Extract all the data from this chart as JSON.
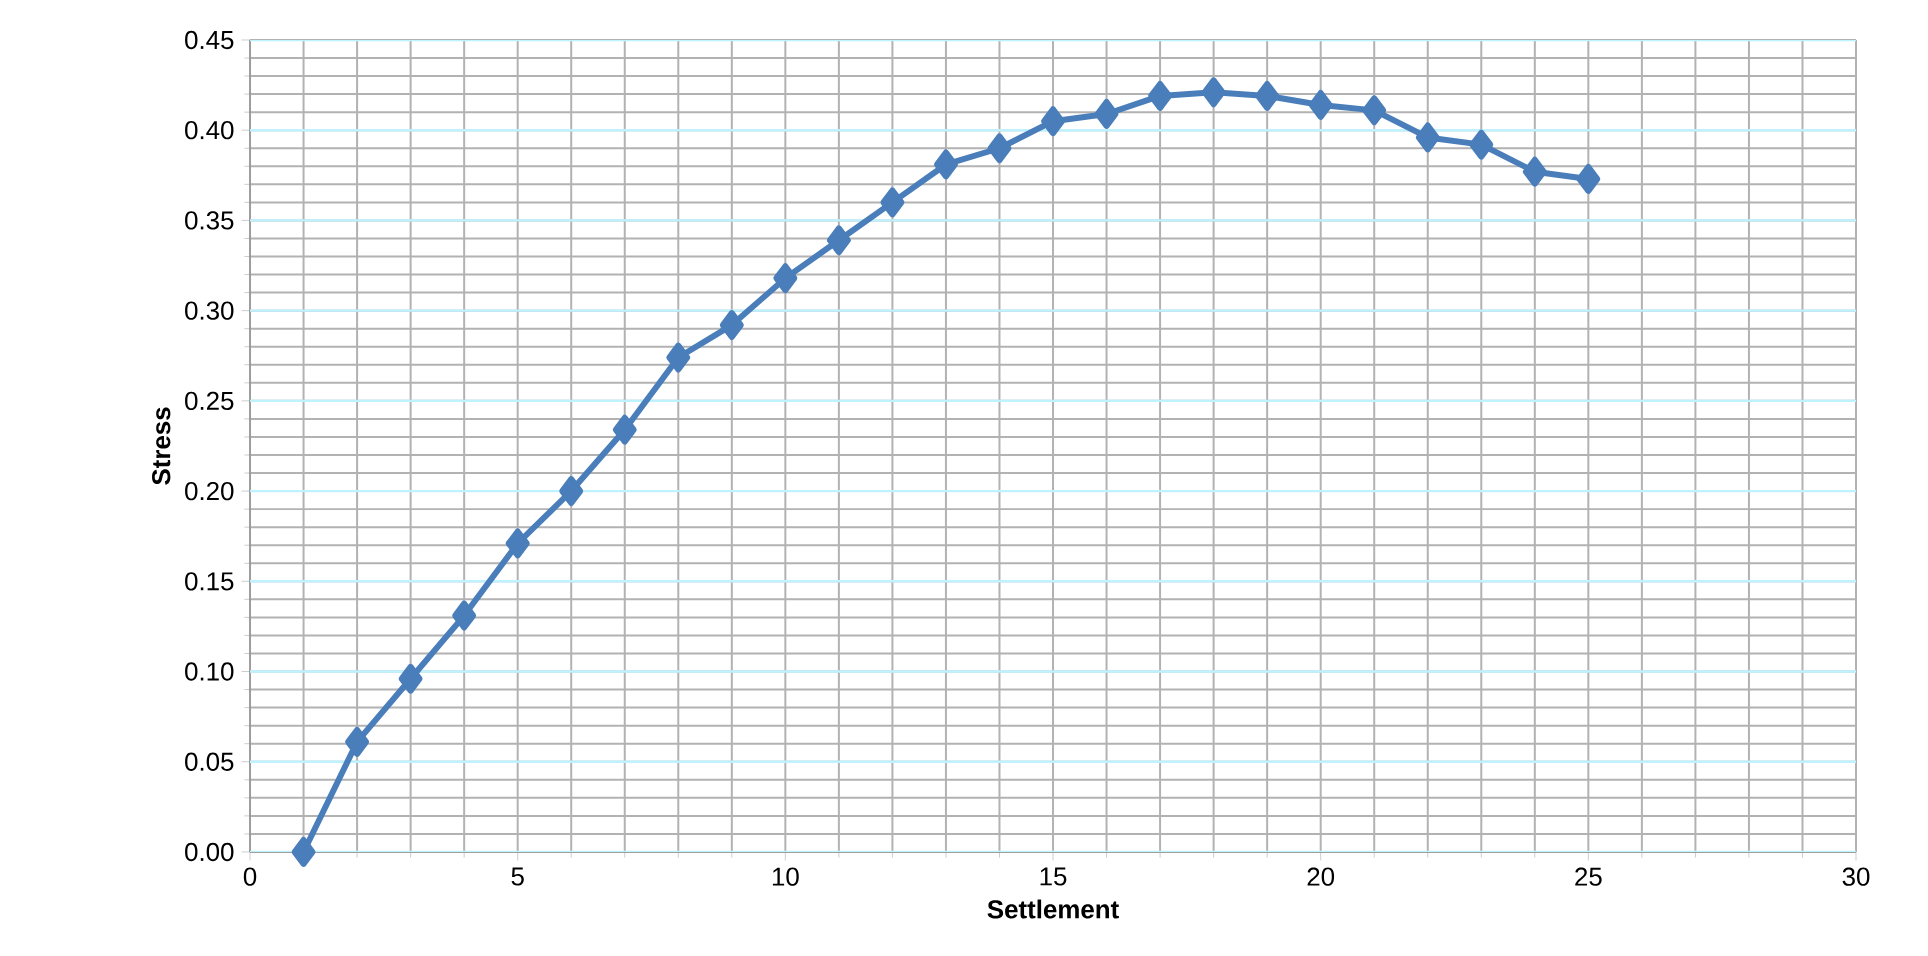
{
  "chart_data": {
    "type": "line",
    "xlabel": "Settlement",
    "ylabel": "Stress",
    "x": [
      1,
      2,
      3,
      4,
      5,
      6,
      7,
      8,
      9,
      10,
      11,
      12,
      13,
      14,
      15,
      16,
      17,
      18,
      19,
      20,
      21,
      22,
      23,
      24,
      25
    ],
    "series": [
      {
        "color": "#4a7ebb",
        "values": [
          0.0,
          0.061,
          0.096,
          0.131,
          0.171,
          0.2,
          0.234,
          0.274,
          0.292,
          0.318,
          0.339,
          0.36,
          0.381,
          0.39,
          0.405,
          0.409,
          0.419,
          0.421,
          0.419,
          0.414,
          0.411,
          0.396,
          0.392,
          0.377,
          0.373
        ]
      }
    ],
    "xlim": [
      0,
      30
    ],
    "xticks": [
      0,
      5,
      10,
      15,
      20,
      25,
      30
    ],
    "ylim": [
      0,
      0.45
    ],
    "yticks": [
      {
        "value": 0,
        "label": "0.00"
      },
      {
        "value": 0.05,
        "label": "0.05"
      },
      {
        "value": 0.1,
        "label": "0.10"
      },
      {
        "value": 0.15,
        "label": "0.15"
      },
      {
        "value": 0.2,
        "label": "0.20"
      },
      {
        "value": 0.25,
        "label": "0.25"
      },
      {
        "value": 0.3,
        "label": "0.30"
      },
      {
        "value": 0.35,
        "label": "0.35"
      },
      {
        "value": 0.4,
        "label": "0.40"
      },
      {
        "value": 0.45,
        "label": "0.45"
      }
    ],
    "grid": true,
    "marker": "diamond",
    "line_style": "solid"
  }
}
